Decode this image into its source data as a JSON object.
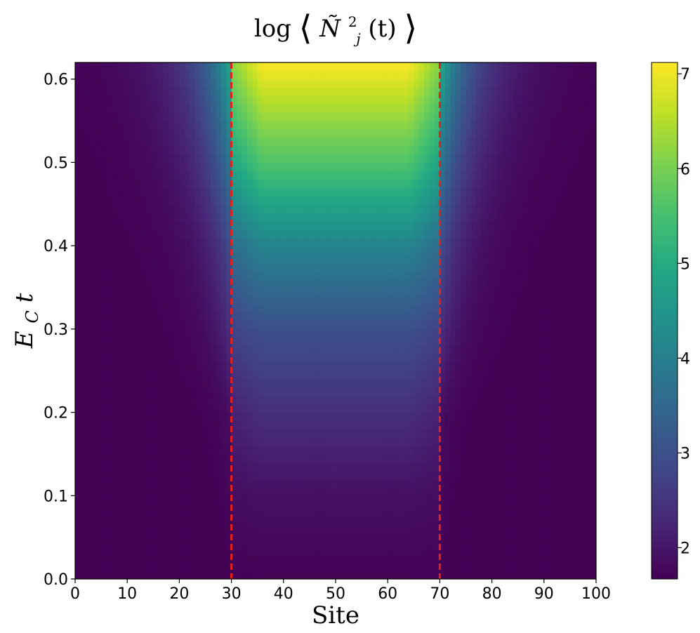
{
  "chart_data": {
    "type": "heatmap",
    "title": {
      "prefix": "log",
      "symbol": "Ñ",
      "superscript": "2",
      "subscript": "j",
      "suffix": "(t)"
    },
    "xlabel": "Site",
    "ylabel": {
      "main": "E",
      "subscript": "C",
      "suffix": "t"
    },
    "xlim": [
      0,
      100
    ],
    "ylim": [
      0,
      0.62
    ],
    "x_ticks": [
      0,
      10,
      20,
      30,
      40,
      50,
      60,
      70,
      80,
      90,
      100
    ],
    "x_tick_labels": [
      "0",
      "10",
      "20",
      "30",
      "40",
      "50",
      "60",
      "70",
      "80",
      "90",
      "100"
    ],
    "y_ticks": [
      0.0,
      0.1,
      0.2,
      0.3,
      0.4,
      0.5,
      0.6
    ],
    "y_tick_labels": [
      "0.0",
      "0.1",
      "0.2",
      "0.3",
      "0.4",
      "0.5",
      "0.6"
    ],
    "colormap": "viridis",
    "colorbar": {
      "vmin": 1.67,
      "vmax": 7.12,
      "ticks": [
        2,
        3,
        4,
        5,
        6,
        7
      ],
      "tick_labels": [
        "2",
        "3",
        "4",
        "5",
        "6",
        "7"
      ]
    },
    "vlines": [
      {
        "x": 30,
        "color": "#e8201a",
        "style": "dashed"
      },
      {
        "x": 70,
        "color": "#e8201a",
        "style": "dashed"
      }
    ],
    "field": {
      "baseline": 1.67,
      "central_region": [
        30,
        70
      ],
      "center_value_at_time": [
        {
          "t": 0.0,
          "value": 1.7
        },
        {
          "t": 0.1,
          "value": 1.9
        },
        {
          "t": 0.2,
          "value": 2.4
        },
        {
          "t": 0.3,
          "value": 3.0
        },
        {
          "t": 0.4,
          "value": 4.1
        },
        {
          "t": 0.5,
          "value": 5.6
        },
        {
          "t": 0.62,
          "value": 7.1
        }
      ],
      "edge_value_at_time": [
        {
          "t": 0.0,
          "value": 1.67
        },
        {
          "t": 0.2,
          "value": 1.9
        },
        {
          "t": 0.4,
          "value": 3.0
        },
        {
          "t": 0.62,
          "value": 5.0
        }
      ]
    }
  }
}
